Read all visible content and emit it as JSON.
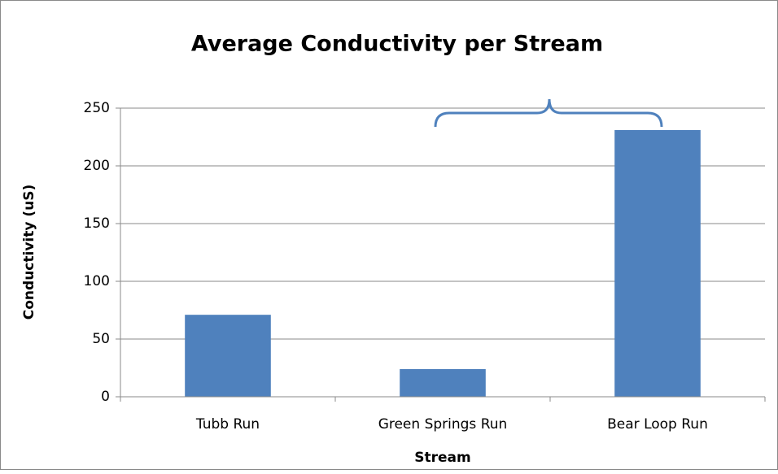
{
  "chart_data": {
    "type": "bar",
    "title": "Average Conductivity per Stream",
    "x_label": "Stream",
    "y_label": "Conductivity (uS)",
    "categories": [
      "Tubb Run",
      "Green Springs Run",
      "Bear Loop Run"
    ],
    "values": [
      71,
      24,
      231
    ],
    "color": "#4f81bd",
    "ylim": [
      0,
      250
    ],
    "yticks": [
      0,
      50,
      100,
      150,
      200,
      250
    ],
    "grid": true
  }
}
